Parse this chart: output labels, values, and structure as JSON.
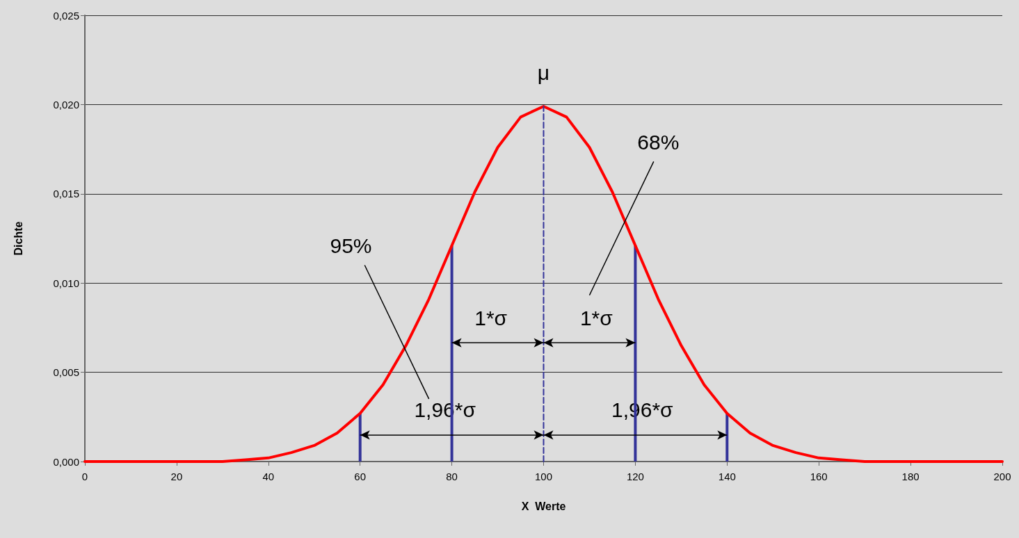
{
  "chart_data": {
    "type": "line",
    "xlabel": "X  Werte",
    "ylabel": "Dichte",
    "xlim": [
      0,
      200
    ],
    "ylim": [
      0,
      0.025
    ],
    "xticks": [
      0,
      20,
      40,
      60,
      80,
      100,
      120,
      140,
      160,
      180,
      200
    ],
    "yticks": [
      {
        "value": 0,
        "label": "0,000"
      },
      {
        "value": 0.005,
        "label": "0,005"
      },
      {
        "value": 0.01,
        "label": "0,010"
      },
      {
        "value": 0.015,
        "label": "0,015"
      },
      {
        "value": 0.02,
        "label": "0,020"
      },
      {
        "value": 0.025,
        "label": "0,025"
      }
    ],
    "grid": "y",
    "marker": "none",
    "series": [
      {
        "color": "#ff0000",
        "x": [
          0,
          5,
          10,
          15,
          20,
          25,
          30,
          35,
          40,
          45,
          50,
          55,
          60,
          65,
          70,
          75,
          80,
          85,
          90,
          95,
          100,
          105,
          110,
          115,
          120,
          125,
          130,
          135,
          140,
          145,
          150,
          155,
          160,
          165,
          170,
          175,
          180,
          185,
          190,
          195,
          200
        ],
        "values": [
          0,
          0,
          0,
          0,
          0,
          0,
          0,
          0.0001,
          0.0002,
          0.0005,
          0.0009,
          0.0016,
          0.0027,
          0.0043,
          0.0065,
          0.0091,
          0.0121,
          0.0151,
          0.0176,
          0.0193,
          0.0199,
          0.0193,
          0.0176,
          0.0151,
          0.0121,
          0.0091,
          0.0065,
          0.0043,
          0.0027,
          0.0016,
          0.0009,
          0.0005,
          0.0002,
          0.0001,
          0,
          0,
          0,
          0,
          0,
          0,
          0
        ]
      },
      {
        "type": "bar",
        "color": "#333399",
        "x": [
          60,
          80,
          120,
          140
        ],
        "values": [
          0.0027,
          0.0121,
          0.0121,
          0.0027
        ]
      },
      {
        "type": "line",
        "color": "#333399",
        "line_style": "dashed",
        "x": [
          100,
          100
        ],
        "values": [
          0,
          0.0199
        ]
      }
    ],
    "annotations": [
      "μ",
      "68%",
      "95%",
      "1*σ",
      "1*σ",
      "1,96*σ",
      "1,96*σ"
    ]
  }
}
